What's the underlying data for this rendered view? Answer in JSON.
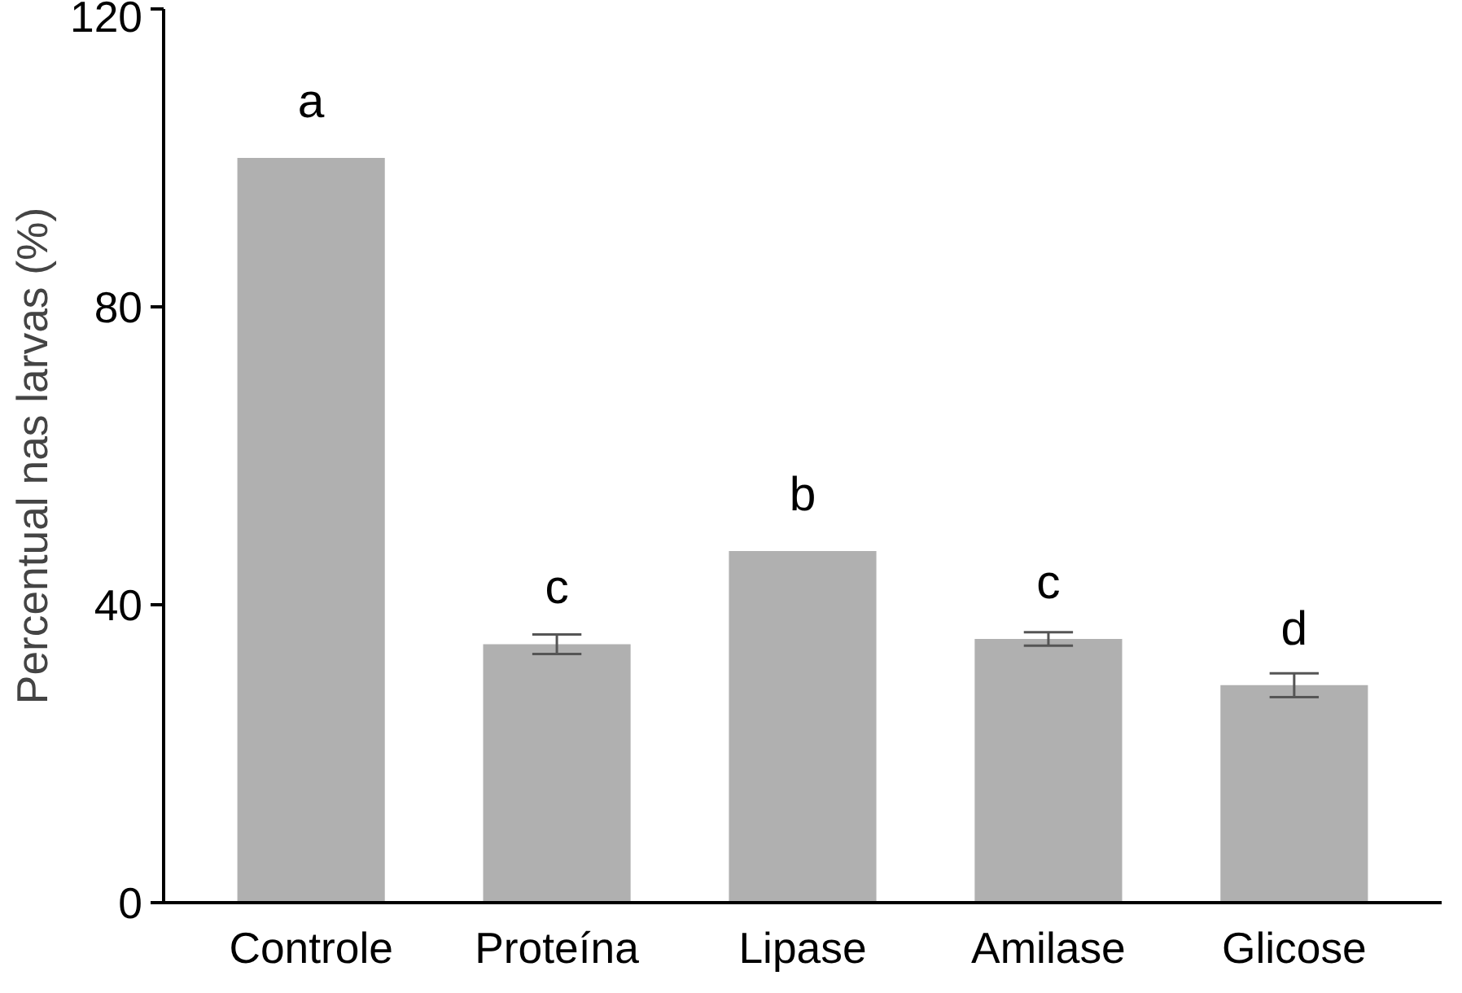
{
  "chart_data": {
    "type": "bar",
    "ylabel": "Percentual nas larvas (%)",
    "categories": [
      "Controle",
      "Proteína",
      "Lipase",
      "Amilase",
      "Glicose"
    ],
    "values": [
      100,
      34.7,
      47.2,
      35.4,
      29.2
    ],
    "errors": [
      null,
      1.3,
      null,
      0.9,
      1.6
    ],
    "color": "#b0b0b0",
    "ylim": [
      0,
      120
    ],
    "yticks": [
      0,
      40,
      80,
      120
    ],
    "grid": false,
    "annotations": [
      {
        "text": "a",
        "x": "Controle",
        "y": 100
      },
      {
        "text": "c",
        "x": "Proteína",
        "y": 34.7
      },
      {
        "text": "b",
        "x": "Lipase",
        "y": 47.2
      },
      {
        "text": "c",
        "x": "Amilase",
        "y": 35.4
      },
      {
        "text": "d",
        "x": "Glicose",
        "y": 29.2
      }
    ]
  }
}
